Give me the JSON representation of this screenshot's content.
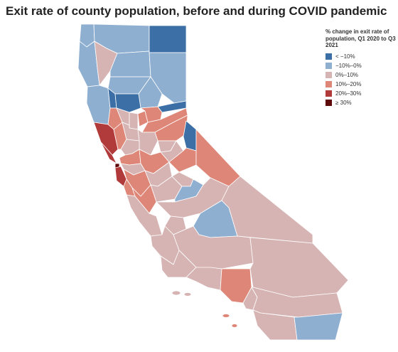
{
  "title": "Exit rate of county population, before and during COVID pandemic",
  "legend": {
    "title": "% change in exit rate of population, Q1 2020 to Q3 2021",
    "items": [
      {
        "label": "< −10%",
        "color": "#3b6fa6"
      },
      {
        "label": "−10%–0%",
        "color": "#8fafd1"
      },
      {
        "label": "0%–10%",
        "color": "#d7b4b4"
      },
      {
        "label": "10%–20%",
        "color": "#de8677"
      },
      {
        "label": "20%–30%",
        "color": "#b13b3a"
      },
      {
        "label": "≥ 30%",
        "color": "#5e0a0a"
      }
    ]
  },
  "map_data": {
    "region": "California",
    "unit": "county",
    "counties": [
      {
        "name": "Del Norte",
        "category": 1
      },
      {
        "name": "Siskiyou",
        "category": 1
      },
      {
        "name": "Modoc",
        "category": 0
      },
      {
        "name": "Humboldt",
        "category": 1
      },
      {
        "name": "Trinity",
        "category": 2
      },
      {
        "name": "Shasta",
        "category": 1
      },
      {
        "name": "Lassen",
        "category": 1
      },
      {
        "name": "Tehama",
        "category": 1
      },
      {
        "name": "Plumas",
        "category": 1
      },
      {
        "name": "Mendocino",
        "category": 1
      },
      {
        "name": "Glenn",
        "category": 0
      },
      {
        "name": "Butte",
        "category": 0
      },
      {
        "name": "Sierra",
        "category": 0
      },
      {
        "name": "Lake",
        "category": 3
      },
      {
        "name": "Colusa",
        "category": 2
      },
      {
        "name": "Sutter",
        "category": 2
      },
      {
        "name": "Yuba",
        "category": 3
      },
      {
        "name": "Nevada",
        "category": 3
      },
      {
        "name": "Placer",
        "category": 3
      },
      {
        "name": "El Dorado",
        "category": 3
      },
      {
        "name": "Alpine",
        "category": 0
      },
      {
        "name": "Sonoma",
        "category": 4
      },
      {
        "name": "Napa",
        "category": 3
      },
      {
        "name": "Yolo",
        "category": 2
      },
      {
        "name": "Sacramento",
        "category": 2
      },
      {
        "name": "Amador",
        "category": 2
      },
      {
        "name": "Calaveras",
        "category": 2
      },
      {
        "name": "Tuolumne",
        "category": 3
      },
      {
        "name": "Mono",
        "category": 3
      },
      {
        "name": "Marin",
        "category": 4
      },
      {
        "name": "Solano",
        "category": 2
      },
      {
        "name": "Contra Costa",
        "category": 3
      },
      {
        "name": "San Joaquin",
        "category": 3
      },
      {
        "name": "San Francisco",
        "category": 5
      },
      {
        "name": "San Mateo",
        "category": 4
      },
      {
        "name": "Alameda",
        "category": 2
      },
      {
        "name": "Santa Clara",
        "category": 3
      },
      {
        "name": "Stanislaus",
        "category": 2
      },
      {
        "name": "Merced",
        "category": 2
      },
      {
        "name": "Mariposa",
        "category": 2
      },
      {
        "name": "Madera",
        "category": 1
      },
      {
        "name": "Santa Cruz",
        "category": 3
      },
      {
        "name": "San Benito",
        "category": 3
      },
      {
        "name": "Fresno",
        "category": 2
      },
      {
        "name": "Monterey",
        "category": 2
      },
      {
        "name": "Kings",
        "category": 2
      },
      {
        "name": "Tulare",
        "category": 1
      },
      {
        "name": "Inyo",
        "category": 2
      },
      {
        "name": "San Luis Obispo",
        "category": 2
      },
      {
        "name": "Kern",
        "category": 2
      },
      {
        "name": "Santa Barbara",
        "category": 2
      },
      {
        "name": "Ventura",
        "category": 2
      },
      {
        "name": "Los Angeles",
        "category": 3
      },
      {
        "name": "San Bernardino",
        "category": 2
      },
      {
        "name": "Orange",
        "category": 2
      },
      {
        "name": "Riverside",
        "category": 2
      },
      {
        "name": "San Diego",
        "category": 2
      },
      {
        "name": "Imperial",
        "category": 1
      }
    ]
  }
}
